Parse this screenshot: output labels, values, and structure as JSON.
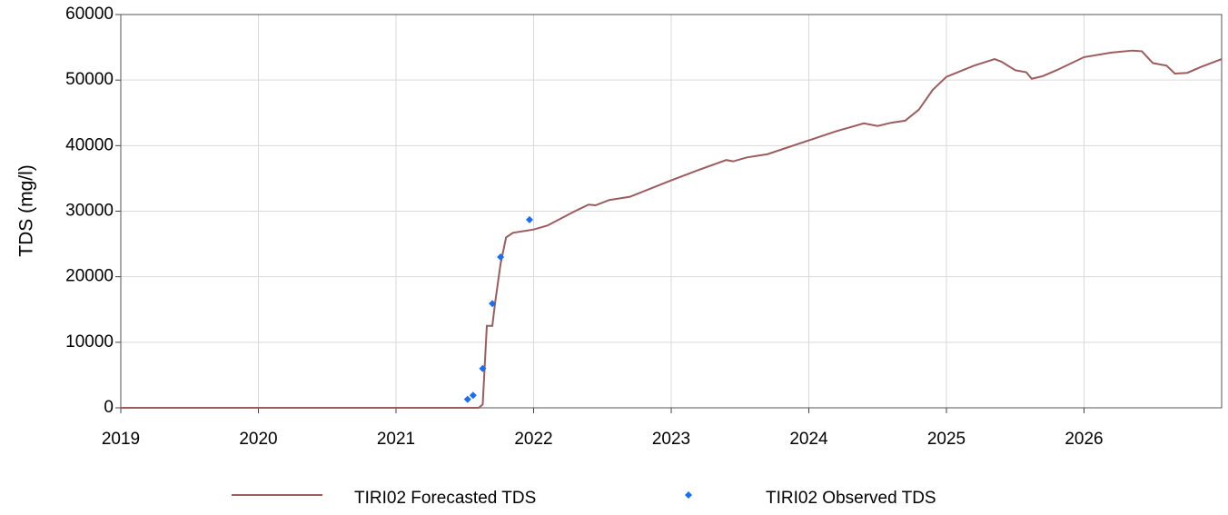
{
  "chart_data": {
    "type": "line",
    "ylabel": "TDS (mg/l)",
    "xlim": [
      2019,
      2027
    ],
    "xticks": [
      2019,
      2020,
      2021,
      2022,
      2023,
      2024,
      2025,
      2026
    ],
    "ylim": [
      0,
      60000
    ],
    "yticks": [
      0,
      10000,
      20000,
      30000,
      40000,
      50000,
      60000
    ],
    "grid": true,
    "legend": "bottom",
    "series": [
      {
        "name": "TIRI02 Forecasted TDS",
        "type": "line",
        "color": "#9c5c5e",
        "x": [
          2019,
          2021.6,
          2021.63,
          2021.66,
          2021.7,
          2021.72,
          2021.76,
          2021.8,
          2021.85,
          2022.0,
          2022.1,
          2022.3,
          2022.4,
          2022.45,
          2022.55,
          2022.7,
          2023.0,
          2023.2,
          2023.4,
          2023.45,
          2023.55,
          2023.7,
          2024.0,
          2024.2,
          2024.4,
          2024.5,
          2024.6,
          2024.7,
          2024.8,
          2024.9,
          2025.0,
          2025.2,
          2025.35,
          2025.4,
          2025.5,
          2025.58,
          2025.62,
          2025.7,
          2025.8,
          2026.0,
          2026.2,
          2026.35,
          2026.42,
          2026.5,
          2026.6,
          2026.66,
          2026.75,
          2026.85,
          2027.0
        ],
        "values": [
          0,
          0,
          500,
          12500,
          12500,
          16000,
          22000,
          26000,
          26700,
          27200,
          27800,
          30000,
          31000,
          30900,
          31700,
          32200,
          34700,
          36300,
          37800,
          37600,
          38200,
          38700,
          40800,
          42200,
          43400,
          43000,
          43500,
          43800,
          45500,
          48500,
          50500,
          52200,
          53200,
          52800,
          51500,
          51200,
          50200,
          50600,
          51500,
          53500,
          54200,
          54500,
          54400,
          52600,
          52200,
          51000,
          51100,
          52000,
          53200
        ]
      },
      {
        "name": "TIRI02 Observed TDS",
        "type": "scatter",
        "color": "#1a6ef0",
        "x": [
          2021.52,
          2021.56,
          2021.63,
          2021.7,
          2021.76,
          2021.97
        ],
        "values": [
          1300,
          1900,
          6000,
          15900,
          23000,
          28700
        ]
      }
    ]
  }
}
